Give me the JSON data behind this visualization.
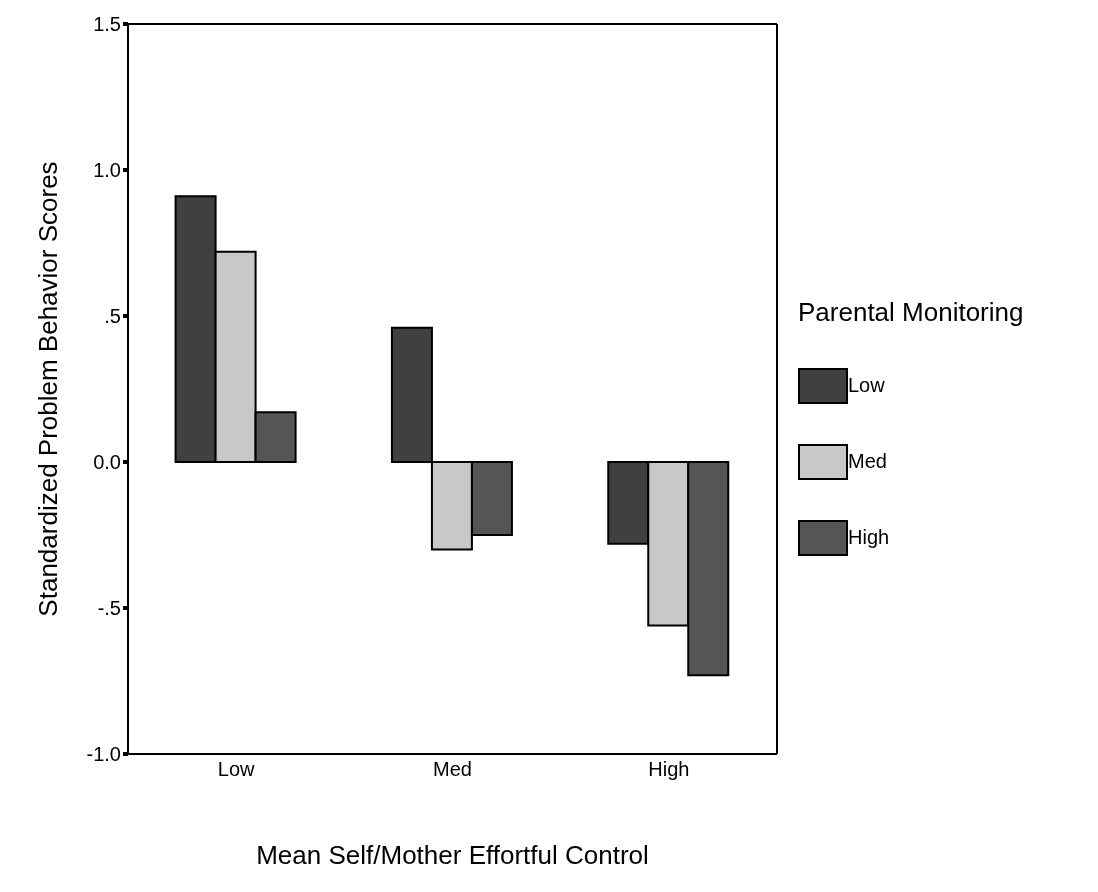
{
  "chart_data": {
    "type": "bar",
    "xlabel": "Mean Self/Mother Effortful Control",
    "ylabel": "Standardized Problem Behavior Scores",
    "legend_title": "Parental Monitoring",
    "categories": [
      "Low",
      "Med",
      "High"
    ],
    "series": [
      {
        "name": "Low",
        "color": "#404040",
        "values": [
          0.91,
          0.46,
          -0.28
        ]
      },
      {
        "name": "Med",
        "color": "#c8c8c8",
        "values": [
          0.72,
          -0.3,
          -0.56
        ]
      },
      {
        "name": "High",
        "color": "#555555",
        "values": [
          0.17,
          -0.25,
          -0.73
        ]
      }
    ],
    "ylim": [
      -1,
      1.5
    ],
    "yticks": [
      {
        "value": -1,
        "label": "-1.0"
      },
      {
        "value": -0.5,
        "label": "-.5"
      },
      {
        "value": 0,
        "label": "0.0"
      },
      {
        "value": 0.5,
        "label": ".5"
      },
      {
        "value": 1,
        "label": "1.0"
      },
      {
        "value": 1.5,
        "label": "1.5"
      }
    ],
    "grid": false,
    "legend": "right"
  }
}
